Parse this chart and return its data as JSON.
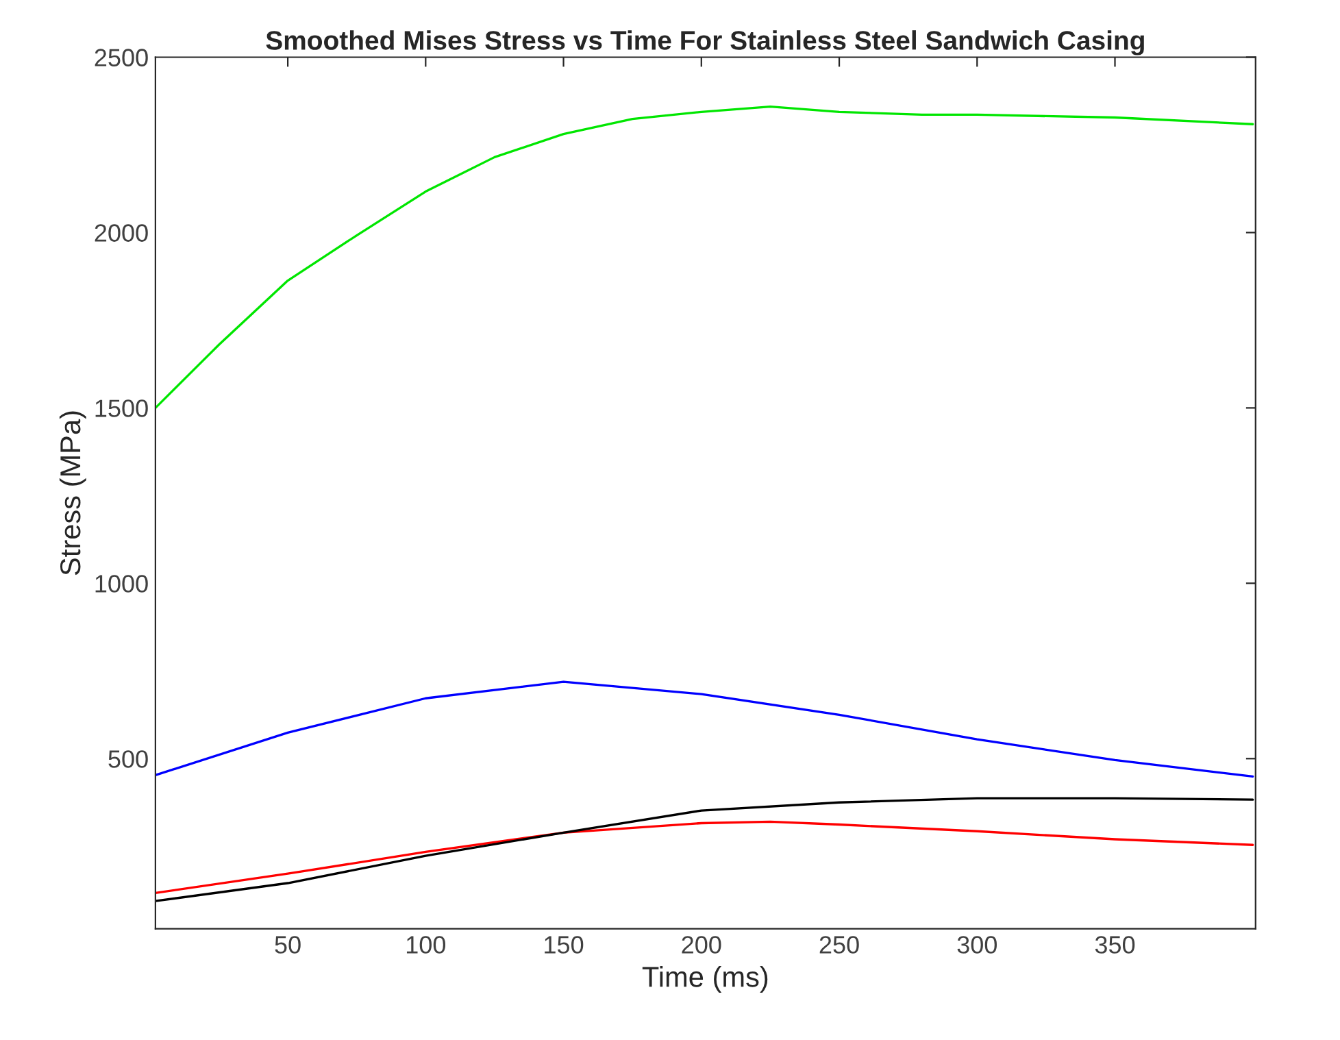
{
  "chart_data": {
    "type": "line",
    "title": "Smoothed Mises Stress vs Time For Stainless Steel Sandwich Casing",
    "xlabel": "Time (ms)",
    "ylabel": "Stress (MPa)",
    "xlim": [
      2,
      401
    ],
    "ylim": [
      15,
      2500
    ],
    "xticks": [
      50,
      100,
      150,
      200,
      250,
      300,
      350
    ],
    "yticks": [
      500,
      1000,
      1500,
      2000,
      2500
    ],
    "grid": false,
    "series": [
      {
        "color": "#00e600",
        "x": [
          2,
          25,
          50,
          75,
          100,
          125,
          150,
          175,
          200,
          225,
          250,
          280,
          300,
          350,
          400
        ],
        "values": [
          1500,
          1680,
          1863,
          1992,
          2117,
          2215,
          2281,
          2324,
          2344,
          2359,
          2344,
          2336,
          2336,
          2328,
          2309
        ]
      },
      {
        "color": "#0000ff",
        "x": [
          2,
          50,
          100,
          150,
          200,
          250,
          300,
          350,
          400
        ],
        "values": [
          453,
          574,
          672,
          719,
          684,
          625,
          555,
          496,
          449
        ]
      },
      {
        "color": "#ff0000",
        "x": [
          2,
          50,
          100,
          150,
          200,
          225,
          250,
          300,
          350,
          400
        ],
        "values": [
          117,
          172,
          234,
          289,
          316,
          320,
          312,
          293,
          270,
          254
        ]
      },
      {
        "color": "#000000",
        "x": [
          2,
          50,
          100,
          150,
          200,
          250,
          300,
          350,
          400
        ],
        "values": [
          94,
          145,
          223,
          289,
          352,
          375,
          387,
          387,
          383
        ]
      }
    ]
  }
}
